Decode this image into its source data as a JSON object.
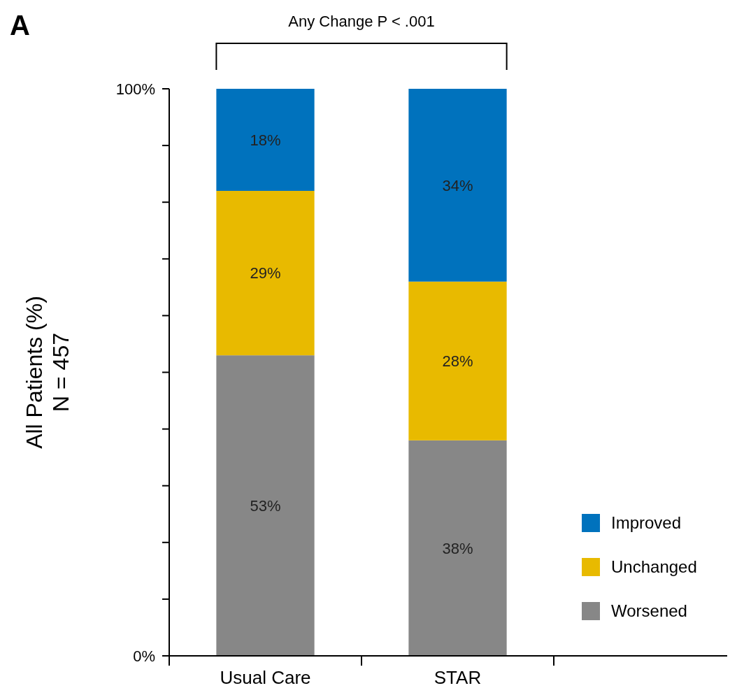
{
  "chart_data": {
    "type": "bar",
    "title": "A",
    "ylabel": "All Patients (%)\nN = 457",
    "annotations": [
      "Any Change P < .001"
    ],
    "categories": [
      "Usual Care",
      "STAR"
    ],
    "stacked": true,
    "legend": "bottom right",
    "grid": false,
    "ylim": [
      0,
      100
    ],
    "yticks": [
      {
        "value": 0,
        "label": "0%"
      },
      {
        "value": 10,
        "label": null
      },
      {
        "value": 20,
        "label": null
      },
      {
        "value": 30,
        "label": null
      },
      {
        "value": 40,
        "label": null
      },
      {
        "value": 50,
        "label": null
      },
      {
        "value": 60,
        "label": null
      },
      {
        "value": 70,
        "label": null
      },
      {
        "value": 80,
        "label": null
      },
      {
        "value": 90,
        "label": null
      },
      {
        "value": 100,
        "label": "100%"
      }
    ],
    "series": [
      {
        "name": "Worsened",
        "color": "#878787",
        "values": [
          53,
          38
        ],
        "value_labels": [
          "53%",
          "38%"
        ]
      },
      {
        "name": "Unchanged",
        "color": "#e8ba00",
        "values": [
          29,
          28
        ],
        "value_labels": [
          "29%",
          "28%"
        ]
      },
      {
        "name": "Improved",
        "color": "#0072bd",
        "values": [
          18,
          34
        ],
        "value_labels": [
          "18%",
          "34%"
        ]
      }
    ]
  }
}
